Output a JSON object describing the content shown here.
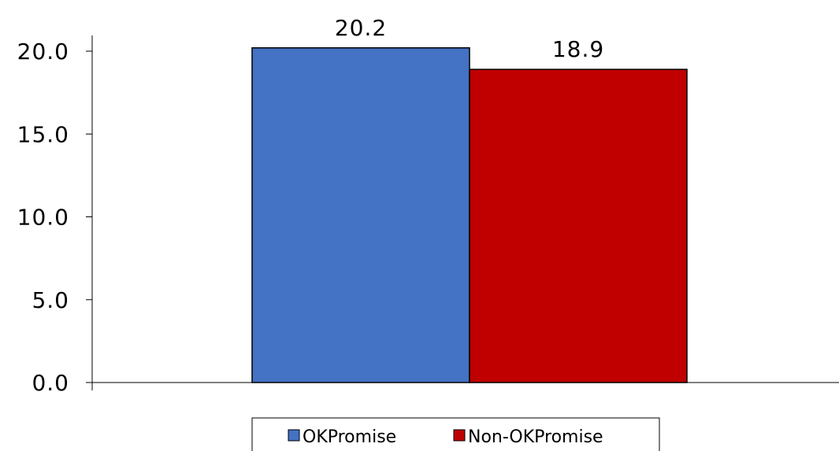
{
  "chart_data": {
    "type": "bar",
    "title": "",
    "xlabel": "",
    "ylabel": "",
    "categories": [
      ""
    ],
    "series": [
      {
        "name": "OKPromise",
        "values": [
          20.2
        ],
        "color": "#4472C4",
        "value_label": "20.2"
      },
      {
        "name": "Non-OKPromise",
        "values": [
          18.9
        ],
        "color": "#C00000",
        "value_label": "18.9"
      }
    ],
    "ylim": [
      0,
      20
    ],
    "yticks": [
      0,
      5,
      10,
      15,
      20
    ],
    "ytick_labels": [
      "0.0",
      "5.0",
      "10.0",
      "15.0",
      "20.0"
    ],
    "grid": false,
    "legend": {
      "placement": "bottom-center"
    }
  }
}
